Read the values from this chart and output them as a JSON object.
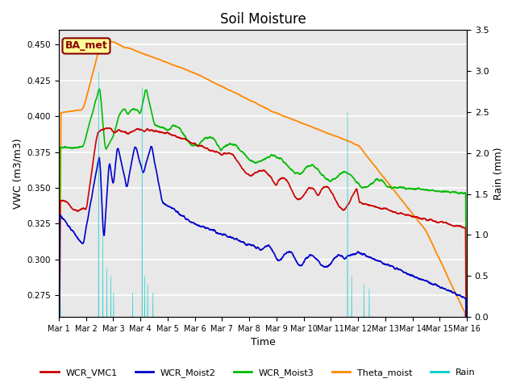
{
  "title": "Soil Moisture",
  "xlabel": "Time",
  "ylabel_left": "VWC (m3/m3)",
  "ylabel_right": "Rain (mm)",
  "ylim_left": [
    0.26,
    0.46
  ],
  "ylim_right": [
    0.0,
    3.5
  ],
  "bg_color": "#e8e8e8",
  "annotation_text": "BA_met",
  "annotation_color": "#8b0000",
  "annotation_bg": "#ffff99",
  "colors": {
    "WCR_VMC1": "#cc0000",
    "WCR_Moist2": "#0000cc",
    "WCR_Moist3": "#00bb00",
    "Theta_moist": "#ff8800",
    "Rain": "#00cccc"
  },
  "xtick_labels": [
    "Mar 1",
    "Mar 2",
    "Mar 3",
    "Mar 4",
    "Mar 5",
    "Mar 6",
    "Mar 7",
    "Mar 8",
    "Mar 9",
    "Mar 10",
    "Mar 11",
    "Mar 12",
    "Mar 13",
    "Mar 14",
    "Mar 15",
    "Mar 16"
  ]
}
